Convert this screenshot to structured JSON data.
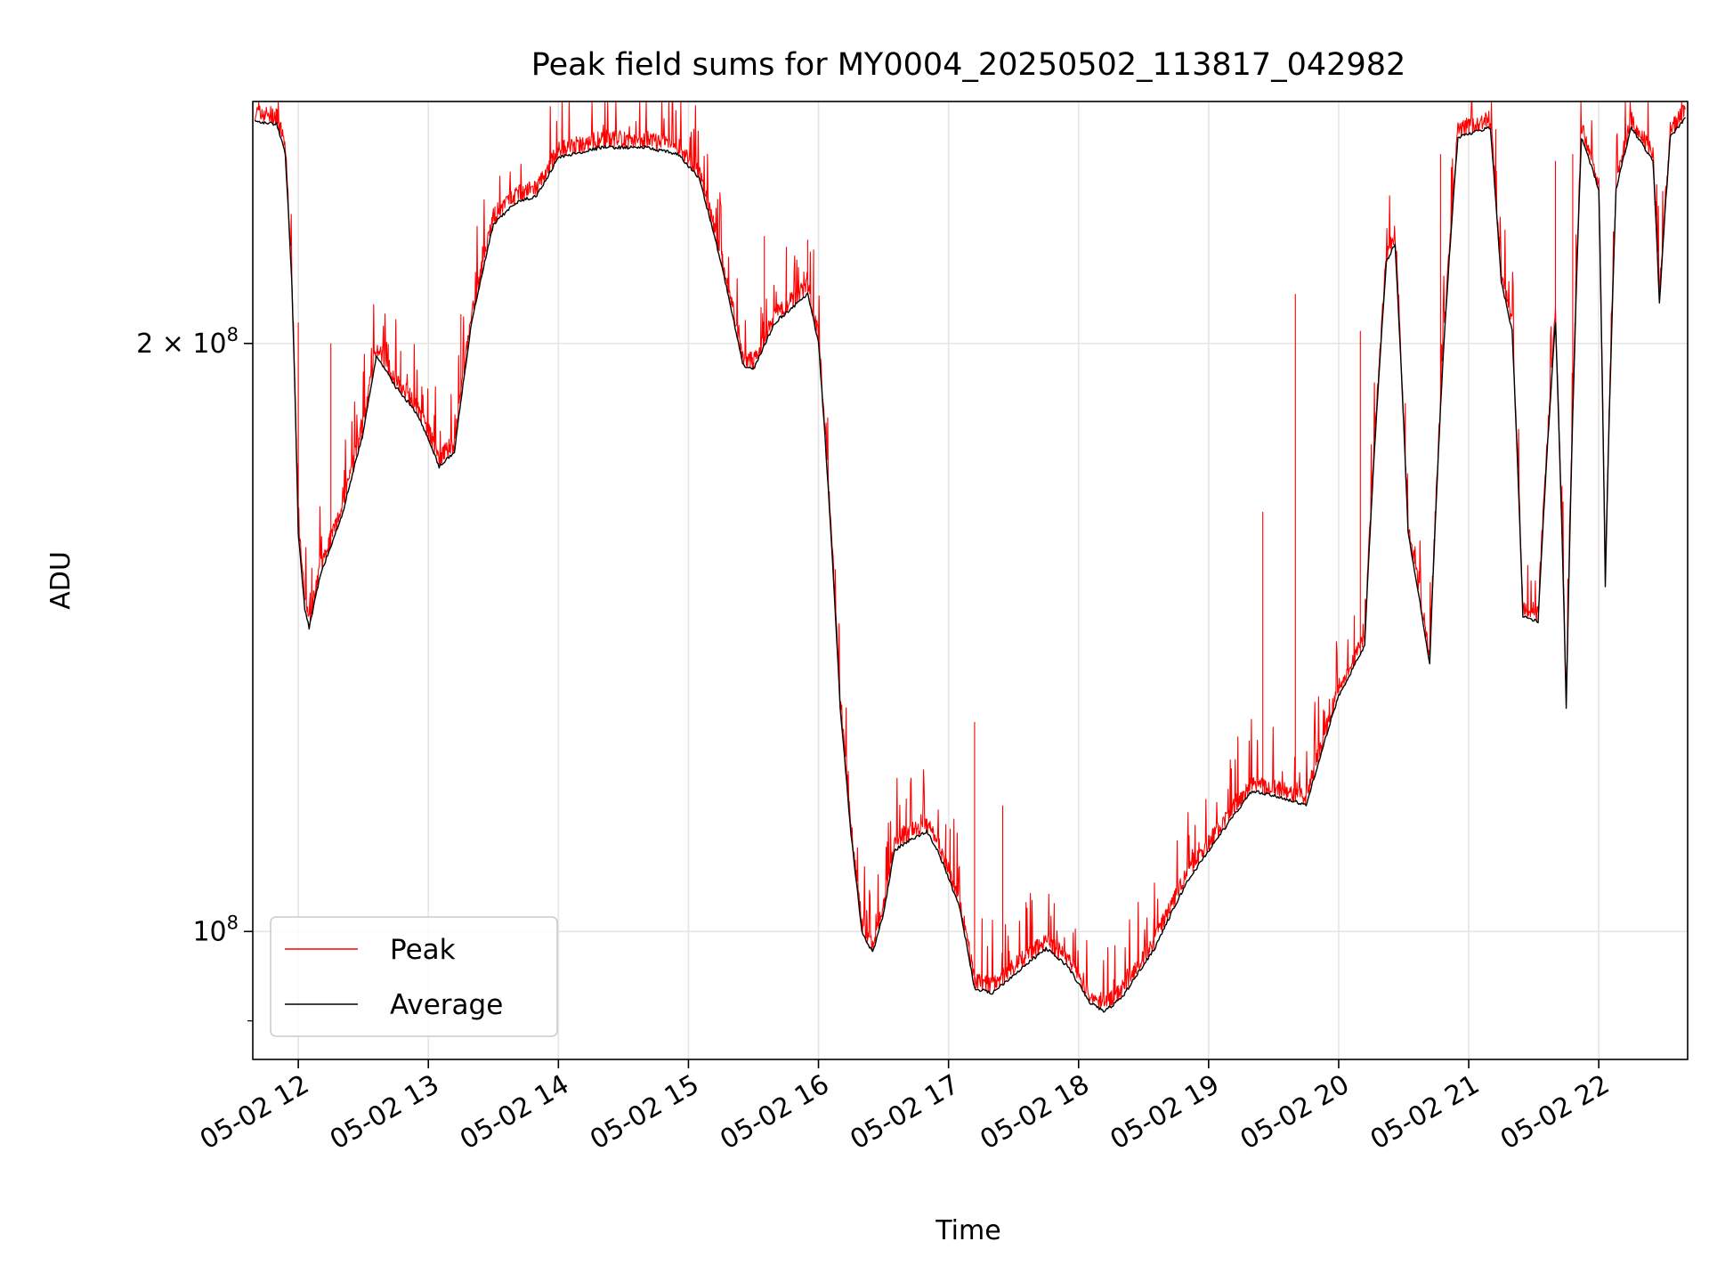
{
  "chart_data": {
    "type": "line",
    "title": "Peak field sums for MY0004_20250502_113817_042982",
    "xlabel": "Time",
    "ylabel": "ADU",
    "y_scale": "log",
    "xlim": [
      "2025-05-02 11:39",
      "2025-05-02 22:41"
    ],
    "ylim": [
      86000000,
      266000000
    ],
    "x_ticks": [
      "05-02 12",
      "05-02 13",
      "05-02 14",
      "05-02 15",
      "05-02 16",
      "05-02 17",
      "05-02 18",
      "05-02 19",
      "05-02 20",
      "05-02 21",
      "05-02 22"
    ],
    "y_ticks": [
      {
        "value": 200000000,
        "base": "2 × 10",
        "exp": "8"
      },
      {
        "value": 100000000,
        "base": "10",
        "exp": "8"
      }
    ],
    "grid": true,
    "legend_position": "lower-left",
    "colors": {
      "peak": "#ff0000",
      "average": "#000000",
      "grid": "#e5e5e5"
    },
    "series": [
      {
        "name": "Average",
        "color": "#000000",
        "points": [
          [
            "2025-05-02 11:40",
            260000000
          ],
          [
            "2025-05-02 11:50",
            259000000
          ],
          [
            "2025-05-02 11:54",
            250000000
          ],
          [
            "2025-05-02 11:57",
            215000000
          ],
          [
            "2025-05-02 12:00",
            160000000
          ],
          [
            "2025-05-02 12:03",
            146000000
          ],
          [
            "2025-05-02 12:05",
            143000000
          ],
          [
            "2025-05-02 12:10",
            152000000
          ],
          [
            "2025-05-02 12:20",
            163000000
          ],
          [
            "2025-05-02 12:30",
            180000000
          ],
          [
            "2025-05-02 12:36",
            197000000
          ],
          [
            "2025-05-02 12:45",
            190000000
          ],
          [
            "2025-05-02 12:55",
            184000000
          ],
          [
            "2025-05-02 13:05",
            173000000
          ],
          [
            "2025-05-02 13:12",
            176000000
          ],
          [
            "2025-05-02 13:20",
            205000000
          ],
          [
            "2025-05-02 13:30",
            230000000
          ],
          [
            "2025-05-02 13:40",
            236000000
          ],
          [
            "2025-05-02 13:50",
            238000000
          ],
          [
            "2025-05-02 14:00",
            249000000
          ],
          [
            "2025-05-02 14:20",
            252000000
          ],
          [
            "2025-05-02 14:40",
            252000000
          ],
          [
            "2025-05-02 14:55",
            250000000
          ],
          [
            "2025-05-02 15:05",
            243000000
          ],
          [
            "2025-05-02 15:15",
            220000000
          ],
          [
            "2025-05-02 15:25",
            195000000
          ],
          [
            "2025-05-02 15:30",
            194000000
          ],
          [
            "2025-05-02 15:40",
            205000000
          ],
          [
            "2025-05-02 15:55",
            212000000
          ],
          [
            "2025-05-02 16:00",
            200000000
          ],
          [
            "2025-05-02 16:05",
            165000000
          ],
          [
            "2025-05-02 16:10",
            130000000
          ],
          [
            "2025-05-02 16:15",
            112000000
          ],
          [
            "2025-05-02 16:20",
            100000000
          ],
          [
            "2025-05-02 16:25",
            97500000
          ],
          [
            "2025-05-02 16:30",
            102000000
          ],
          [
            "2025-05-02 16:35",
            110000000
          ],
          [
            "2025-05-02 16:40",
            111000000
          ],
          [
            "2025-05-02 16:50",
            112500000
          ],
          [
            "2025-05-02 16:55",
            110000000
          ],
          [
            "2025-05-02 17:05",
            103000000
          ],
          [
            "2025-05-02 17:12",
            93500000
          ],
          [
            "2025-05-02 17:20",
            93000000
          ],
          [
            "2025-05-02 17:30",
            95000000
          ],
          [
            "2025-05-02 17:45",
            98000000
          ],
          [
            "2025-05-02 17:55",
            96000000
          ],
          [
            "2025-05-02 18:05",
            92000000
          ],
          [
            "2025-05-02 18:12",
            91000000
          ],
          [
            "2025-05-02 18:20",
            92500000
          ],
          [
            "2025-05-02 18:35",
            98000000
          ],
          [
            "2025-05-02 18:50",
            106000000
          ],
          [
            "2025-05-02 19:05",
            112000000
          ],
          [
            "2025-05-02 19:20",
            118000000
          ],
          [
            "2025-05-02 19:35",
            117000000
          ],
          [
            "2025-05-02 19:45",
            116000000
          ],
          [
            "2025-05-02 20:00",
            132000000
          ],
          [
            "2025-05-02 20:12",
            140000000
          ],
          [
            "2025-05-02 20:22",
            220000000
          ],
          [
            "2025-05-02 20:26",
            225000000
          ],
          [
            "2025-05-02 20:32",
            160000000
          ],
          [
            "2025-05-02 20:42",
            137000000
          ],
          [
            "2025-05-02 20:48",
            195000000
          ],
          [
            "2025-05-02 20:55",
            255000000
          ],
          [
            "2025-05-02 21:10",
            258000000
          ],
          [
            "2025-05-02 21:15",
            215000000
          ],
          [
            "2025-05-02 21:20",
            203000000
          ],
          [
            "2025-05-02 21:25",
            145000000
          ],
          [
            "2025-05-02 21:32",
            144000000
          ],
          [
            "2025-05-02 21:40",
            205000000
          ],
          [
            "2025-05-02 21:45",
            130000000
          ],
          [
            "2025-05-02 21:52",
            255000000
          ],
          [
            "2025-05-02 22:00",
            240000000
          ],
          [
            "2025-05-02 22:03",
            150000000
          ],
          [
            "2025-05-02 22:08",
            240000000
          ],
          [
            "2025-05-02 22:15",
            258000000
          ],
          [
            "2025-05-02 22:25",
            248000000
          ],
          [
            "2025-05-02 22:28",
            210000000
          ],
          [
            "2025-05-02 22:33",
            255000000
          ],
          [
            "2025-05-02 22:40",
            261000000
          ]
        ]
      },
      {
        "name": "Peak",
        "color": "#ff0000",
        "note_spikes": [
          [
            "2025-05-02 12:00",
            205000000
          ],
          [
            "2025-05-02 12:15",
            200000000
          ],
          [
            "2025-05-02 13:15",
            207000000
          ],
          [
            "2025-05-02 15:35",
            227000000
          ],
          [
            "2025-05-02 15:55",
            226000000
          ],
          [
            "2025-05-02 17:12",
            128000000
          ],
          [
            "2025-05-02 17:25",
            116000000
          ],
          [
            "2025-05-02 19:25",
            164000000
          ],
          [
            "2025-05-02 19:40",
            212000000
          ],
          [
            "2025-05-02 20:10",
            203000000
          ],
          [
            "2025-05-02 20:47",
            250000000
          ],
          [
            "2025-05-02 21:40",
            248000000
          ],
          [
            "2025-05-02 21:48",
            250000000
          ]
        ]
      }
    ]
  }
}
